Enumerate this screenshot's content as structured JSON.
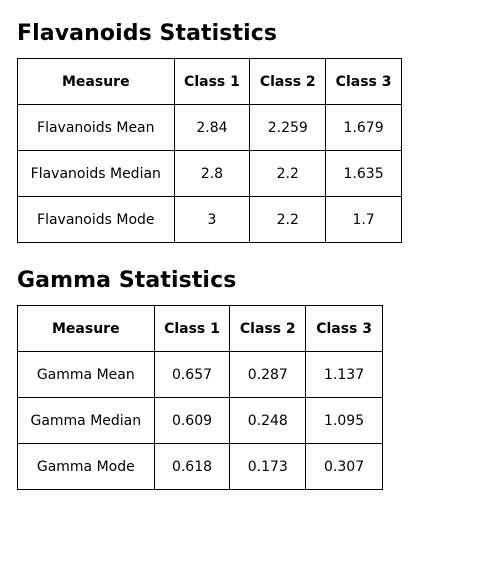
{
  "flavanoids": {
    "title": "Flavanoids Statistics",
    "headers": [
      "Measure",
      "Class 1",
      "Class 2",
      "Class 3"
    ],
    "rows": [
      [
        "Flavanoids Mean",
        "2.84",
        "2.259",
        "1.679"
      ],
      [
        "Flavanoids Median",
        "2.8",
        "2.2",
        "1.635"
      ],
      [
        "Flavanoids Mode",
        "3",
        "2.2",
        "1.7"
      ]
    ]
  },
  "gamma": {
    "title": "Gamma Statistics",
    "headers": [
      "Measure",
      "Class 1",
      "Class 2",
      "Class 3"
    ],
    "rows": [
      [
        "Gamma Mean",
        "0.657",
        "0.287",
        "1.137"
      ],
      [
        "Gamma Median",
        "0.609",
        "0.248",
        "1.095"
      ],
      [
        "Gamma Mode",
        "0.618",
        "0.173",
        "0.307"
      ]
    ]
  }
}
